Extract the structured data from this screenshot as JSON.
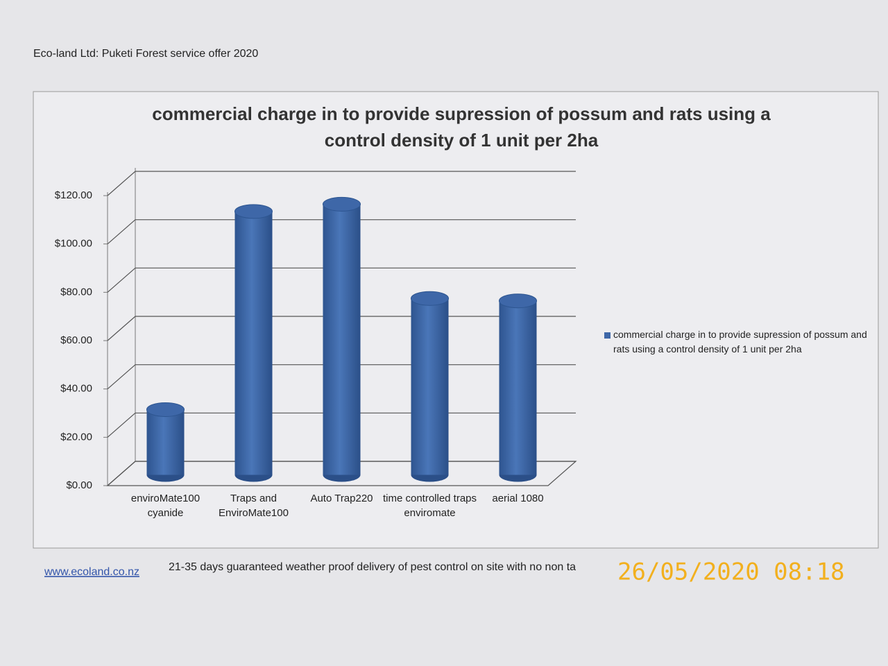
{
  "header": {
    "title": "Eco-land Ltd: Puketi Forest service offer 2020"
  },
  "chart_data": {
    "type": "bar3d",
    "title": "commercial charge in to provide supression of possum and rats using a control density  of 1 unit per 2ha",
    "categories": [
      "enviroMate100 cyanide",
      "Traps and EnviroMate100",
      "Auto Trap220",
      "time controlled traps enviromate",
      "aerial 1080"
    ],
    "series": [
      {
        "name": "commercial charge in to provide supression of possum and rats using a control density  of 1 unit per 2ha",
        "color": "#3e67a8",
        "values": [
          27,
          109,
          112,
          73,
          72
        ]
      }
    ],
    "ylim": [
      0,
      120
    ],
    "yticks": [
      {
        "value": 0,
        "label": "$0.00"
      },
      {
        "value": 20,
        "label": "$20.00"
      },
      {
        "value": 40,
        "label": "$40.00"
      },
      {
        "value": 60,
        "label": "$60.00"
      },
      {
        "value": 80,
        "label": "$80.00"
      },
      {
        "value": 100,
        "label": "$100.00"
      },
      {
        "value": 120,
        "label": "$120.00"
      }
    ],
    "grid": true,
    "legend": "right"
  },
  "footer": {
    "link": "www.ecoland.co.nz",
    "note": "21-35 days guaranteed weather proof delivery of pest control on site with no non ta",
    "timestamp": "26/05/2020 08:18"
  }
}
